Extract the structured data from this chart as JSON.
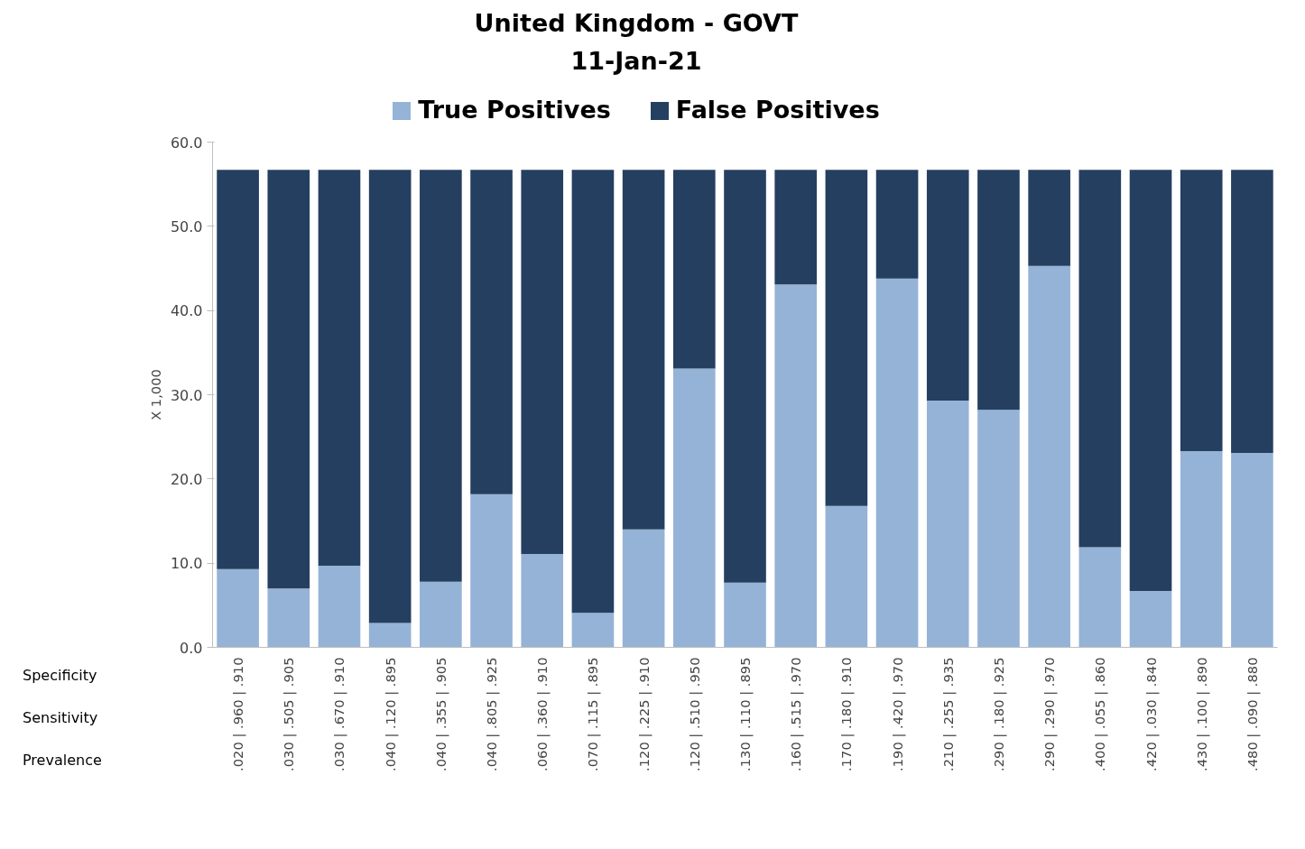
{
  "chart_data": {
    "type": "bar",
    "title": "United Kingdom - GOVT",
    "subtitle": "11-Jan-21",
    "ylabel": "X 1,000",
    "categories": [
      ".020 | .960 | .910",
      ".030 | .505 | .905",
      ".030 | .670 | .910",
      ".040 | .120 | .895",
      ".040 | .355 | .905",
      ".040 | .805 | .925",
      ".060 | .360 | .910",
      ".070 | .115 | .895",
      ".120 | .225 | .910",
      ".120 | .510 | .950",
      ".130 | .110 | .895",
      ".160 | .515 | .970",
      ".170 | .180 | .910",
      ".190 | .420 | .970",
      ".210 | .255 | .935",
      ".290 | .180 | .925",
      ".290 | .290 | .970",
      ".400 | .055 | .860",
      ".420 | .030 | .840",
      ".430 | .100 | .890",
      ".480 | .090 | .880"
    ],
    "stacked": true,
    "series": [
      {
        "name": "True Positives",
        "color": "#95b3d7",
        "values": [
          9.3,
          7.0,
          9.7,
          2.9,
          7.8,
          18.2,
          11.1,
          4.1,
          14.0,
          33.1,
          7.7,
          43.1,
          16.8,
          43.8,
          29.3,
          28.2,
          45.3,
          11.9,
          6.7,
          23.3,
          23.1
        ]
      },
      {
        "name": "False Positives",
        "color": "#253f60",
        "values": [
          47.4,
          49.7,
          47.0,
          53.8,
          48.9,
          38.5,
          45.6,
          52.6,
          42.7,
          23.6,
          49.0,
          13.6,
          39.9,
          12.9,
          27.4,
          28.5,
          11.4,
          44.8,
          50.0,
          33.4,
          33.6
        ]
      }
    ],
    "ylim": [
      0,
      60
    ],
    "yticks": [
      {
        "value": 0,
        "label": "0.0"
      },
      {
        "value": 10,
        "label": "10.0"
      },
      {
        "value": 20,
        "label": "20.0"
      },
      {
        "value": 30,
        "label": "30.0"
      },
      {
        "value": 40,
        "label": "40.0"
      },
      {
        "value": 50,
        "label": "50.0"
      },
      {
        "value": 60,
        "label": "60.0"
      }
    ],
    "grid": false,
    "legend": "top",
    "annotations": [
      "Specificity",
      "Sensitivity",
      "Prevalence"
    ]
  }
}
